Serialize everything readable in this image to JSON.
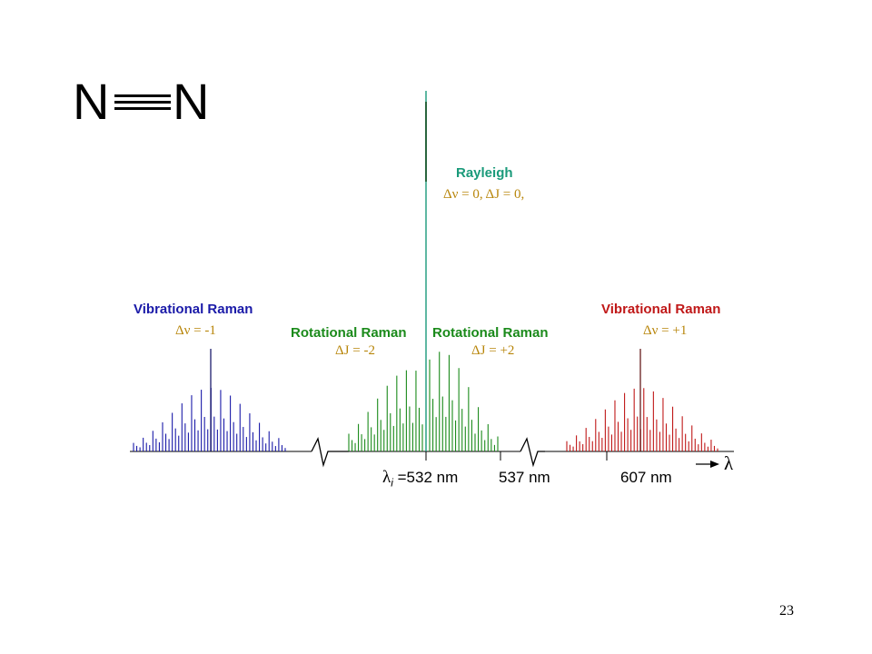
{
  "molecule": {
    "left_atom": "N",
    "right_atom": "N",
    "bond": "triple"
  },
  "labels": {
    "rayleigh_title": "Rayleigh",
    "rayleigh_sub": "Δν = 0, ΔJ = 0,",
    "vib_left_title": "Vibrational Raman",
    "vib_left_sub": "Δν = -1",
    "rot_left_title": "Rotational Raman",
    "rot_left_sub": "ΔJ = -2",
    "rot_right_title": "Rotational Raman",
    "rot_right_sub": "ΔJ = +2",
    "vib_right_title": "Vibrational Raman",
    "vib_right_sub": "Δν = +1"
  },
  "axis": {
    "lambda_symbol": "λ",
    "lambda_sub": "i",
    "tick_532": "=532 nm",
    "tick_537": "537 nm",
    "tick_607": "607 nm",
    "axis_label": "λ"
  },
  "colors": {
    "vibrational_anti_stokes": "#1a1aa8",
    "rotational": "#1a8a1a",
    "rayleigh": "#1a9a7a",
    "vibrational_stokes": "#c01818",
    "delta_text": "#b8860b"
  },
  "page_number": "23"
}
